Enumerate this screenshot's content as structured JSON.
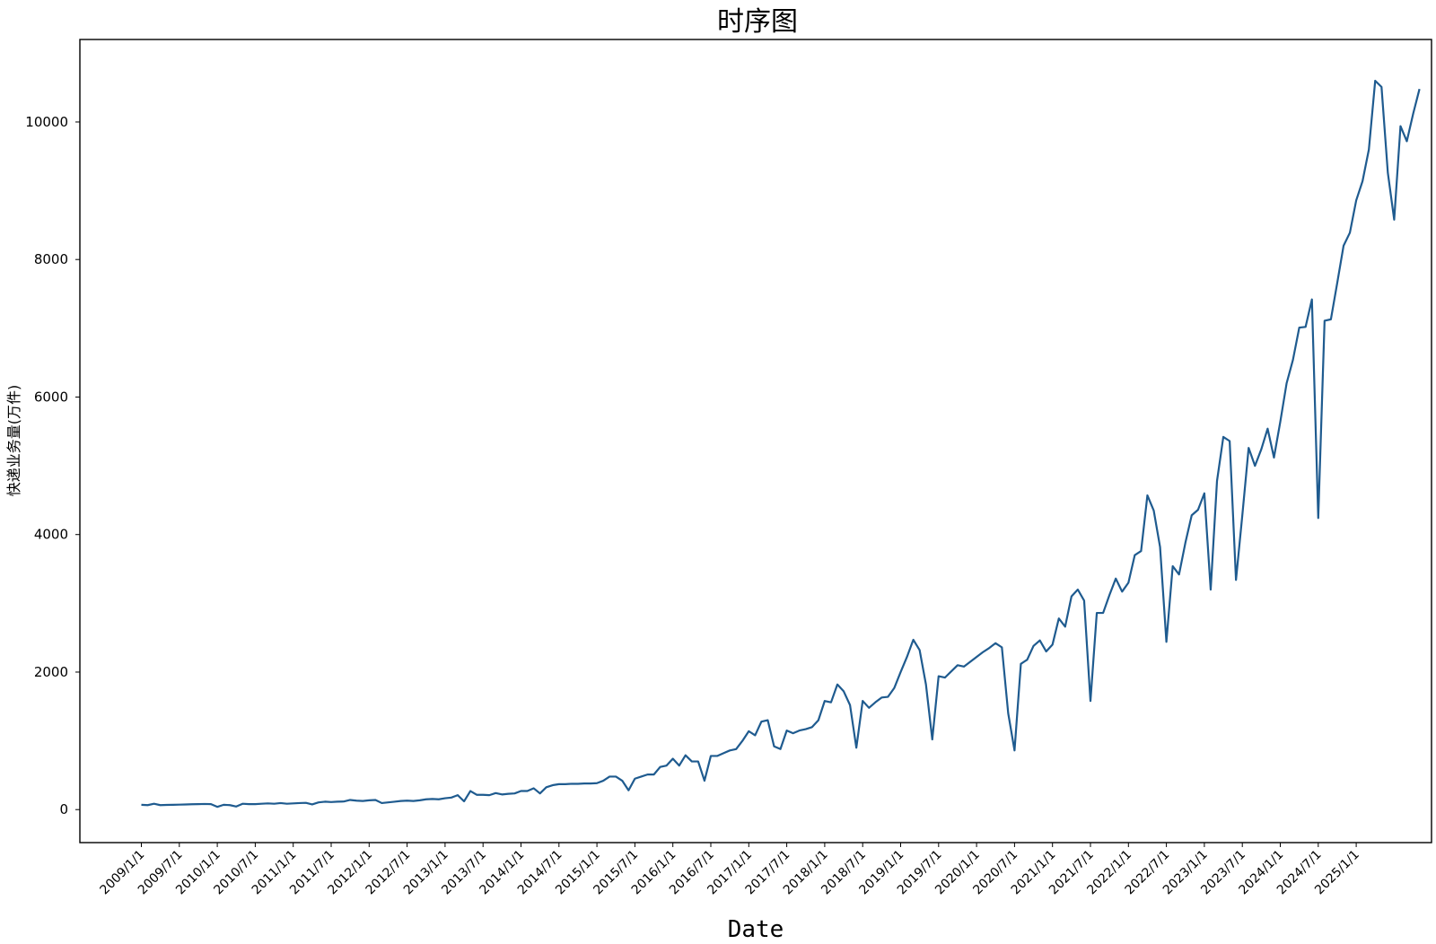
{
  "chart_data": {
    "type": "line",
    "title": "时序图",
    "xlabel": "Date",
    "ylabel": "快递业务量(万件)",
    "ylim": [
      -480,
      11200
    ],
    "yticks": [
      0,
      2000,
      4000,
      6000,
      8000,
      10000
    ],
    "xticks": [
      "2009/1/1",
      "2009/7/1",
      "2010/1/1",
      "2010/7/1",
      "2011/1/1",
      "2011/7/1",
      "2012/1/1",
      "2012/7/1",
      "2013/1/1",
      "2013/7/1",
      "2014/1/1",
      "2014/7/1",
      "2015/1/1",
      "2015/7/1",
      "2016/1/1",
      "2016/7/1",
      "2017/1/1",
      "2017/7/1",
      "2018/1/1",
      "2018/7/1",
      "2019/1/1",
      "2019/7/1",
      "2020/1/1",
      "2020/7/1",
      "2021/1/1",
      "2021/7/1",
      "2022/1/1",
      "2022/7/1",
      "2023/1/1",
      "2023/7/1",
      "2024/1/1",
      "2024/7/1",
      "2025/1/1"
    ],
    "x_start": "2009/1",
    "line_color": "#1f5b8f",
    "grid": false,
    "series": [
      {
        "values": [
          70,
          65,
          85,
          65,
          68,
          70,
          72,
          75,
          78,
          80,
          82,
          80,
          40,
          70,
          65,
          45,
          85,
          80,
          80,
          85,
          90,
          85,
          95,
          85,
          90,
          95,
          98,
          75,
          105,
          115,
          110,
          115,
          118,
          140,
          130,
          125,
          135,
          140,
          95,
          105,
          115,
          125,
          130,
          125,
          135,
          150,
          155,
          150,
          165,
          175,
          210,
          120,
          270,
          215,
          215,
          210,
          240,
          220,
          230,
          235,
          270,
          270,
          310,
          235,
          325,
          355,
          370,
          370,
          375,
          375,
          380,
          380,
          385,
          420,
          480,
          480,
          420,
          280,
          450,
          480,
          510,
          510,
          620,
          640,
          740,
          640,
          790,
          700,
          700,
          420,
          780,
          780,
          820,
          860,
          880,
          1000,
          1140,
          1080,
          1280,
          1300,
          920,
          880,
          1150,
          1110,
          1150,
          1170,
          1200,
          1300,
          1580,
          1560,
          1820,
          1720,
          1520,
          900,
          1580,
          1480,
          1560,
          1630,
          1640,
          1770,
          2000,
          2220,
          2470,
          2320,
          1820,
          1020,
          1940,
          1920,
          2010,
          2100,
          2080,
          2150,
          2220,
          2290,
          2350,
          2420,
          2360,
          1400,
          860,
          2120,
          2180,
          2380,
          2460,
          2300,
          2400,
          2780,
          2660,
          3100,
          3200,
          3040,
          1580,
          2860,
          2860,
          3120,
          3360,
          3170,
          3300,
          3700,
          3760,
          4570,
          4350,
          3820,
          2440,
          3540,
          3420,
          3880,
          4280,
          4360,
          4600,
          3200,
          4780,
          5420,
          5360,
          3340,
          4280,
          5260,
          5000,
          5240,
          5540,
          5120,
          5640,
          6200,
          6540,
          7010,
          7020,
          7420,
          4240,
          7110,
          7130,
          7660,
          8200,
          8390,
          8860,
          9140,
          9600,
          10600,
          10510,
          9260,
          8580,
          9940,
          9720,
          10120,
          10480
        ]
      }
    ]
  }
}
